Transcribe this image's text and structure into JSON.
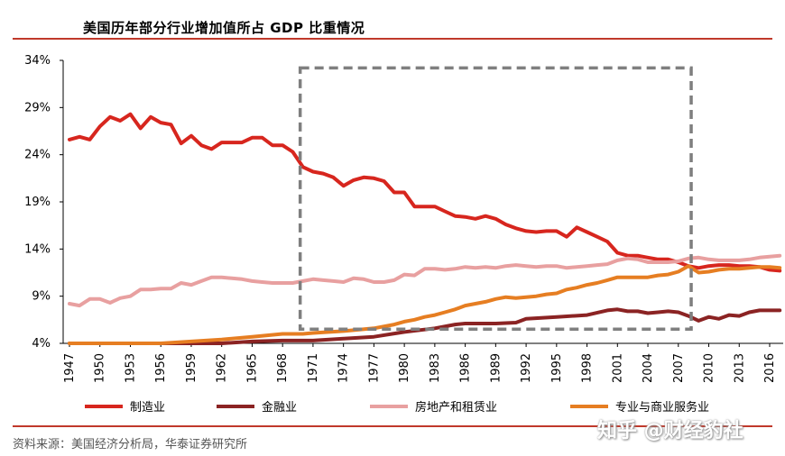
{
  "title": "美国历年部分行业增加值所占 GDP 比重情况",
  "source": "资料来源：美国经济分析局，华泰证券研究所",
  "watermark": "知乎 @财经豹社",
  "chart_data": {
    "type": "line",
    "title": "美国历年部分行业增加值所占 GDP 比重情况",
    "xlabel": "",
    "ylabel": "",
    "ylim": [
      4,
      34
    ],
    "xlim": [
      1947,
      2017
    ],
    "y_ticks": [
      "4%",
      "9%",
      "14%",
      "19%",
      "24%",
      "29%",
      "34%"
    ],
    "x_ticks": [
      "1947",
      "1950",
      "1953",
      "1956",
      "1959",
      "1962",
      "1965",
      "1968",
      "1971",
      "1974",
      "1977",
      "1980",
      "1983",
      "1986",
      "1989",
      "1992",
      "1995",
      "1998",
      "2001",
      "2004",
      "2007",
      "2010",
      "2013",
      "2016"
    ],
    "legend_position": "bottom",
    "grid": false,
    "highlight_box": {
      "x_start": 1970,
      "x_end": 2008,
      "y_low": 5.5,
      "y_high": 33.1,
      "style": "dashed"
    },
    "series": [
      {
        "name": "制造业",
        "color": "#d7261e",
        "x": [
          1947,
          1948,
          1949,
          1950,
          1951,
          1952,
          1953,
          1954,
          1955,
          1956,
          1957,
          1958,
          1959,
          1960,
          1961,
          1962,
          1963,
          1964,
          1965,
          1966,
          1967,
          1968,
          1969,
          1970,
          1971,
          1972,
          1973,
          1974,
          1975,
          1976,
          1977,
          1978,
          1979,
          1980,
          1981,
          1982,
          1983,
          1984,
          1985,
          1986,
          1987,
          1988,
          1989,
          1990,
          1991,
          1992,
          1993,
          1994,
          1995,
          1996,
          1997,
          1998,
          1999,
          2000,
          2001,
          2002,
          2003,
          2004,
          2005,
          2006,
          2007,
          2008,
          2009,
          2010,
          2011,
          2012,
          2013,
          2014,
          2015,
          2016,
          2017
        ],
        "values": [
          25.6,
          25.9,
          25.6,
          27.0,
          28.0,
          27.6,
          28.3,
          26.8,
          28.0,
          27.4,
          27.2,
          25.2,
          26.0,
          25.0,
          24.6,
          25.3,
          25.3,
          25.3,
          25.8,
          25.8,
          25.0,
          25.0,
          24.3,
          22.7,
          22.2,
          22.0,
          21.6,
          20.7,
          21.3,
          21.6,
          21.5,
          21.2,
          20.0,
          20.0,
          18.5,
          18.5,
          18.5,
          18.0,
          17.5,
          17.4,
          17.2,
          17.5,
          17.2,
          16.6,
          16.2,
          15.9,
          15.8,
          15.9,
          15.9,
          15.3,
          16.3,
          15.8,
          15.3,
          14.8,
          13.6,
          13.3,
          13.3,
          13.1,
          12.9,
          12.9,
          12.6,
          12.2,
          12.0,
          12.2,
          12.3,
          12.3,
          12.2,
          12.2,
          12.1,
          11.8,
          11.7
        ]
      },
      {
        "name": "金融业",
        "color": "#8b2323",
        "x": [
          1947,
          1950,
          1953,
          1956,
          1959,
          1962,
          1965,
          1968,
          1971,
          1974,
          1977,
          1980,
          1983,
          1985,
          1986,
          1989,
          1991,
          1992,
          1995,
          1998,
          2000,
          2001,
          2002,
          2003,
          2004,
          2005,
          2006,
          2007,
          2008,
          2009,
          2010,
          2011,
          2012,
          2013,
          2014,
          2015,
          2016,
          2017
        ],
        "values": [
          3.0,
          3.2,
          3.5,
          3.7,
          3.9,
          4.0,
          4.2,
          4.3,
          4.3,
          4.5,
          4.7,
          5.2,
          5.6,
          6.0,
          6.1,
          6.1,
          6.2,
          6.6,
          6.8,
          7.0,
          7.5,
          7.6,
          7.4,
          7.4,
          7.2,
          7.3,
          7.4,
          7.3,
          6.9,
          6.4,
          6.8,
          6.6,
          7.0,
          6.9,
          7.3,
          7.5,
          7.5,
          7.5
        ]
      },
      {
        "name": "房地产和租赁业",
        "color": "#e8a0a0",
        "x": [
          1947,
          1948,
          1949,
          1950,
          1951,
          1952,
          1953,
          1954,
          1955,
          1956,
          1957,
          1958,
          1959,
          1960,
          1961,
          1962,
          1963,
          1964,
          1965,
          1966,
          1967,
          1968,
          1969,
          1970,
          1971,
          1972,
          1973,
          1974,
          1975,
          1976,
          1977,
          1978,
          1979,
          1980,
          1981,
          1982,
          1983,
          1984,
          1985,
          1986,
          1987,
          1988,
          1989,
          1990,
          1991,
          1992,
          1993,
          1994,
          1995,
          1996,
          1997,
          1998,
          1999,
          2000,
          2001,
          2002,
          2003,
          2004,
          2005,
          2006,
          2007,
          2008,
          2009,
          2010,
          2011,
          2012,
          2013,
          2014,
          2015,
          2016,
          2017
        ],
        "values": [
          8.2,
          8.0,
          8.7,
          8.7,
          8.3,
          8.8,
          9.0,
          9.7,
          9.7,
          9.8,
          9.8,
          10.4,
          10.2,
          10.6,
          11.0,
          11.0,
          10.9,
          10.8,
          10.6,
          10.5,
          10.4,
          10.4,
          10.4,
          10.6,
          10.8,
          10.7,
          10.6,
          10.5,
          10.9,
          10.8,
          10.5,
          10.5,
          10.7,
          11.3,
          11.2,
          11.9,
          11.9,
          11.8,
          11.9,
          12.1,
          12.0,
          12.1,
          12.0,
          12.2,
          12.3,
          12.2,
          12.1,
          12.2,
          12.2,
          12.0,
          12.1,
          12.2,
          12.3,
          12.4,
          12.8,
          13.0,
          12.9,
          12.6,
          12.6,
          12.6,
          12.7,
          13.0,
          13.1,
          12.9,
          12.8,
          12.8,
          12.8,
          12.9,
          13.1,
          13.2,
          13.3
        ]
      },
      {
        "name": "专业与商业服务业",
        "color": "#e67e22",
        "x": [
          1947,
          1950,
          1953,
          1956,
          1959,
          1962,
          1965,
          1968,
          1970,
          1971,
          1974,
          1977,
          1979,
          1980,
          1981,
          1982,
          1983,
          1984,
          1985,
          1986,
          1987,
          1988,
          1989,
          1990,
          1991,
          1992,
          1993,
          1994,
          1995,
          1996,
          1997,
          1998,
          1999,
          2000,
          2001,
          2002,
          2003,
          2004,
          2005,
          2006,
          2007,
          2008,
          2009,
          2010,
          2011,
          2012,
          2013,
          2014,
          2015,
          2016,
          2017
        ],
        "values": [
          3.2,
          3.5,
          3.8,
          4.0,
          4.2,
          4.4,
          4.7,
          5.0,
          5.0,
          5.1,
          5.3,
          5.6,
          6.0,
          6.3,
          6.5,
          6.8,
          7.0,
          7.3,
          7.6,
          8.0,
          8.2,
          8.4,
          8.7,
          8.9,
          8.8,
          8.9,
          9.0,
          9.2,
          9.3,
          9.7,
          9.9,
          10.2,
          10.4,
          10.7,
          11.0,
          11.0,
          11.0,
          11.0,
          11.2,
          11.3,
          11.6,
          12.2,
          11.5,
          11.6,
          11.8,
          11.9,
          11.9,
          12.0,
          12.1,
          12.1,
          12.0
        ]
      }
    ]
  }
}
